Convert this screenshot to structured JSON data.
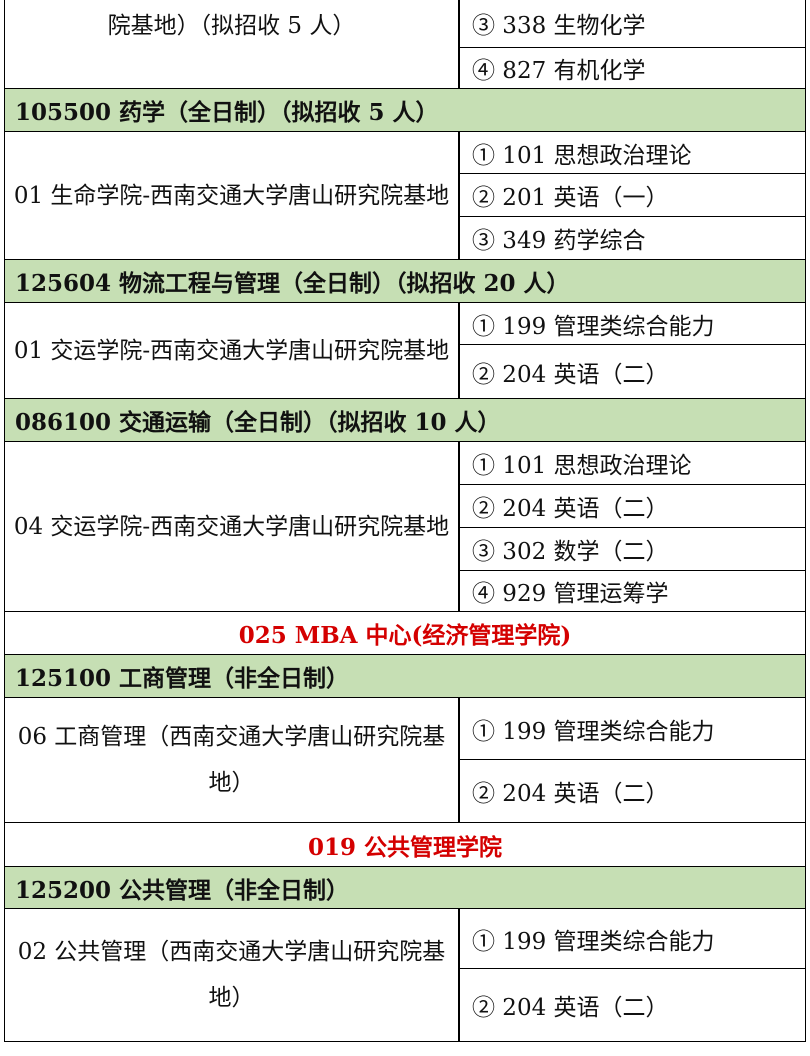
{
  "blocks": [
    {
      "type": "section",
      "left": "院基地）（拟招收 5 人）",
      "subjects": [
        "③ 338 生物化学",
        "④ 827 有机化学"
      ]
    },
    {
      "type": "header",
      "text": "105500  药学（全日制）（拟招收 5 人）"
    },
    {
      "type": "section",
      "left": "01 生命学院-西南交通大学唐山研究院基地",
      "subjects": [
        "① 101 思想政治理论",
        "② 201 英语（一）",
        "③ 349 药学综合"
      ]
    },
    {
      "type": "header",
      "text": "125604  物流工程与管理（全日制）（拟招收 20 人）"
    },
    {
      "type": "section",
      "left": "01 交运学院-西南交通大学唐山研究院基地",
      "subjects": [
        "① 199 管理类综合能力",
        "② 204 英语（二）"
      ]
    },
    {
      "type": "header",
      "text": "086100  交通运输（全日制）（拟招收 10 人）"
    },
    {
      "type": "section",
      "left": "04 交运学院-西南交通大学唐山研究院基地",
      "subjects": [
        "① 101 思想政治理论",
        "② 204 英语（二）",
        "③ 302 数学（二）",
        "④ 929 管理运筹学"
      ]
    },
    {
      "type": "title",
      "text": "025 MBA 中心(经济管理学院)"
    },
    {
      "type": "header",
      "text": "125100  工商管理（非全日制）"
    },
    {
      "type": "section",
      "left": "06 工商管理（西南交通大学唐山研究院基地）",
      "subjects": [
        "① 199 管理类综合能力",
        "② 204 英语（二）"
      ]
    },
    {
      "type": "title",
      "text": "019 公共管理学院"
    },
    {
      "type": "header",
      "text": "125200  公共管理（非全日制）"
    },
    {
      "type": "section",
      "left": "02 公共管理（西南交通大学唐山研究院基地）",
      "subjects": [
        "① 199 管理类综合能力",
        "② 204 英语（二）"
      ]
    }
  ],
  "colors": {
    "header_bg": "#c6dfb4",
    "title_text": "#d40000"
  }
}
